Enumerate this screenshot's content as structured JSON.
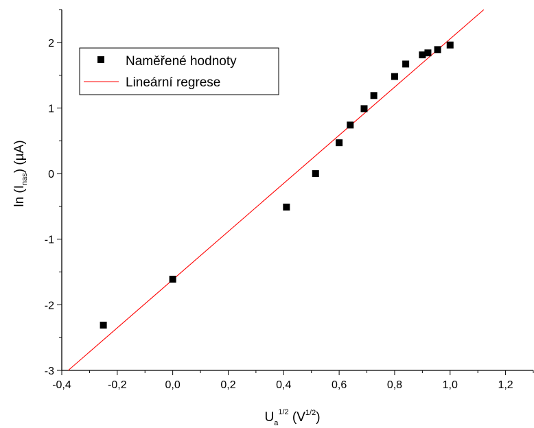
{
  "chart_data": {
    "type": "scatter",
    "xlim": [
      -0.4,
      1.3
    ],
    "ylim": [
      -3,
      2.5
    ],
    "x_ticks": [
      -0.4,
      -0.2,
      0.0,
      0.2,
      0.4,
      0.6,
      0.8,
      1.0,
      1.2
    ],
    "x_tick_labels": [
      "-0,4",
      "-0,2",
      "0,0",
      "0,2",
      "0,4",
      "0,6",
      "0,8",
      "1,0",
      "1,2"
    ],
    "y_ticks": [
      -3,
      -2,
      -1,
      0,
      1,
      2
    ],
    "y_tick_labels": [
      "-3",
      "-2",
      "-1",
      "0",
      "1",
      "2"
    ],
    "xlabel": {
      "main": "U",
      "sub": "a",
      "sup": "1/2",
      "rest_open": " (V",
      "rest_sup": "1/2",
      "rest_close": ")"
    },
    "ylabel": {
      "main": "ln (I",
      "sub": "nas",
      "rest": ") (µA)"
    },
    "legend_position": "top-left",
    "grid": false,
    "series": [
      {
        "name": "Naměřené hodnoty",
        "kind": "scatter",
        "marker": "square",
        "color": "#000000",
        "x": [
          -0.25,
          0.0,
          0.41,
          0.515,
          0.6,
          0.64,
          0.69,
          0.725,
          0.8,
          0.84,
          0.9,
          0.92,
          0.955,
          1.0
        ],
        "y": [
          -2.31,
          -1.61,
          -0.51,
          0.0,
          0.47,
          0.74,
          0.99,
          1.19,
          1.48,
          1.67,
          1.81,
          1.84,
          1.89,
          1.96
        ]
      },
      {
        "name": "Lineární regrese",
        "kind": "line",
        "color": "#ff0000",
        "x": [
          -0.3767,
          1.1218
        ],
        "y": [
          -3.0,
          2.5
        ]
      }
    ]
  }
}
